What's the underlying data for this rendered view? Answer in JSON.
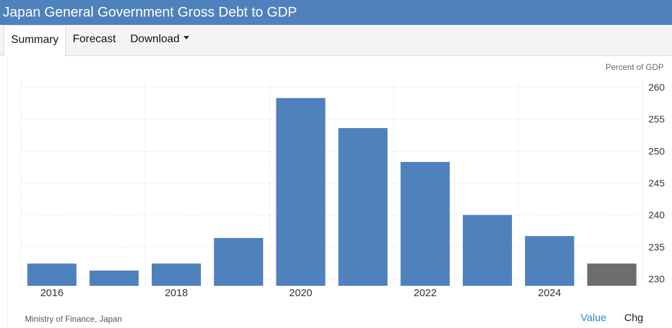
{
  "header": {
    "title": "Japan General Government Gross Debt to GDP"
  },
  "tabs": [
    {
      "label": "Summary",
      "active": true
    },
    {
      "label": "Forecast",
      "active": false
    },
    {
      "label": "Download",
      "active": false
    }
  ],
  "colors": {
    "bar": "#4f81bd",
    "forecast_bar": "#6d6d6d",
    "title_bar": "#4f81bd"
  },
  "chart_data": {
    "type": "bar",
    "unit": "Percent of GDP",
    "x": [
      2016,
      2017,
      2018,
      2019,
      2020,
      2021,
      2022,
      2023,
      2024,
      2025
    ],
    "values": [
      232.4,
      231.3,
      232.4,
      236.4,
      258.3,
      253.6,
      248.3,
      240.0,
      236.7,
      232.4
    ],
    "highlight_last": true,
    "xticks": [
      "2016",
      "2018",
      "2020",
      "2022",
      "2024"
    ],
    "yticks": [
      "260",
      "255",
      "250",
      "245",
      "240",
      "235",
      "230"
    ],
    "ylim": [
      229,
      261
    ],
    "grid": true,
    "yaxis_position": "right"
  },
  "footer": {
    "source": "Ministry of Finance, Japan",
    "value_button": "Value",
    "chg_button": "Chg"
  }
}
